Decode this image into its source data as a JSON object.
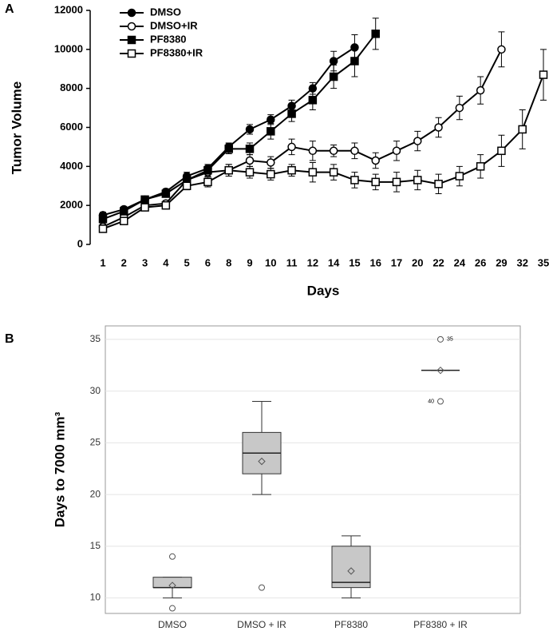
{
  "chart_data": [
    {
      "type": "line",
      "panel": "A",
      "ylabel": "Tumor Volume",
      "xlabel": "Days",
      "categories": [
        "1",
        "2",
        "3",
        "4",
        "5",
        "6",
        "8",
        "9",
        "10",
        "11",
        "12",
        "14",
        "15",
        "16",
        "17",
        "20",
        "22",
        "24",
        "26",
        "29",
        "32",
        "35"
      ],
      "ylim": [
        0,
        12000
      ],
      "yticks": [
        0,
        2000,
        4000,
        6000,
        8000,
        10000,
        12000
      ],
      "series": [
        {
          "name": "DMSO",
          "color": "#000000",
          "marker": "circle",
          "filled": true,
          "values": [
            1500,
            1800,
            2300,
            2700,
            3500,
            3900,
            5000,
            5900,
            6400,
            7100,
            8000,
            9400,
            10100,
            null,
            null,
            null,
            null,
            null,
            null,
            null,
            null,
            null
          ],
          "errors": [
            150,
            150,
            150,
            150,
            200,
            200,
            200,
            250,
            250,
            300,
            300,
            500,
            650,
            null,
            null,
            null,
            null,
            null,
            null,
            null,
            null,
            null
          ]
        },
        {
          "name": "DMSO+IR",
          "color": "#000000",
          "marker": "circle",
          "filled": false,
          "values": [
            900,
            1400,
            2000,
            2100,
            3300,
            3700,
            3800,
            4300,
            4200,
            5000,
            4800,
            4800,
            4800,
            4300,
            4800,
            5300,
            6000,
            7000,
            7900,
            10000,
            null,
            null
          ],
          "errors": [
            150,
            150,
            150,
            150,
            200,
            200,
            300,
            300,
            300,
            400,
            500,
            300,
            400,
            400,
            500,
            500,
            500,
            600,
            700,
            900,
            null,
            null
          ]
        },
        {
          "name": "PF8380",
          "color": "#000000",
          "marker": "square",
          "filled": true,
          "values": [
            1300,
            1700,
            2300,
            2600,
            3300,
            3800,
            4900,
            4900,
            5800,
            6700,
            7400,
            8600,
            9400,
            10800,
            null,
            null,
            null,
            null,
            null,
            null,
            null,
            null
          ],
          "errors": [
            150,
            150,
            150,
            150,
            200,
            200,
            250,
            300,
            400,
            400,
            500,
            600,
            800,
            800,
            null,
            null,
            null,
            null,
            null,
            null,
            null,
            null
          ]
        },
        {
          "name": "PF8380+IR",
          "color": "#000000",
          "marker": "square",
          "filled": false,
          "values": [
            800,
            1200,
            1900,
            2000,
            3000,
            3200,
            3800,
            3700,
            3600,
            3800,
            3700,
            3700,
            3300,
            3200,
            3200,
            3300,
            3100,
            3500,
            4000,
            4800,
            5900,
            8700
          ],
          "errors": [
            150,
            150,
            150,
            150,
            200,
            250,
            300,
            300,
            300,
            300,
            500,
            400,
            400,
            400,
            500,
            500,
            500,
            500,
            600,
            800,
            1000,
            1300
          ]
        }
      ]
    },
    {
      "type": "box",
      "panel": "B",
      "ylabel": "Days to 7000 mm³",
      "categories": [
        "DMSO",
        "DMSO + IR",
        "PF8380",
        "PF8380 + IR"
      ],
      "ylim": [
        8.5,
        36.3
      ],
      "yticks": [
        10,
        15,
        20,
        25,
        30,
        35
      ],
      "grid": true,
      "color": "#c8c8c8",
      "boxes": [
        {
          "whislo": 10,
          "q1": 11,
          "median": 11,
          "q3": 12,
          "whishi": 12,
          "mean": 11.2,
          "fliers": [
            14,
            9
          ]
        },
        {
          "whislo": 20,
          "q1": 22,
          "median": 24,
          "q3": 26,
          "whishi": 29,
          "mean": 23.2,
          "fliers": [
            11
          ]
        },
        {
          "whislo": 10,
          "q1": 11,
          "median": 11.5,
          "q3": 15,
          "whishi": 16,
          "mean": 12.6,
          "fliers": []
        },
        {
          "whislo": 32,
          "q1": 32,
          "median": 32,
          "q3": 32,
          "whishi": 32,
          "mean": 32,
          "fliers": [
            35,
            29
          ],
          "flier_ids": [
            "35",
            "40"
          ]
        }
      ]
    }
  ]
}
